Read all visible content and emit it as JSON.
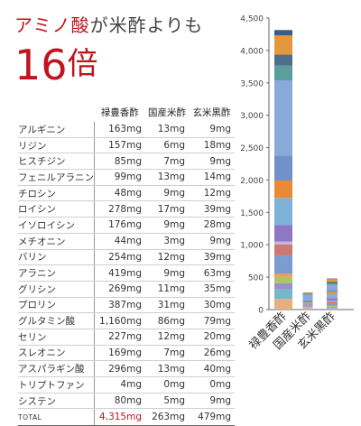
{
  "headline": {
    "red": "アミノ酸",
    "rest": "が米酢よりも"
  },
  "big": {
    "number": "16",
    "unit": "倍"
  },
  "colors": {
    "accent": "#c0141f"
  },
  "chart_data": {
    "type": "bar",
    "stacked": true,
    "categories": [
      "禄豊香酢",
      "国産米酢",
      "玄米黒酢"
    ],
    "ylim": [
      0,
      4500
    ],
    "yticks": [
      "0",
      "500",
      "1,000",
      "1,500",
      "2,000",
      "2,500",
      "3,000",
      "3,500",
      "4,000",
      "4,500"
    ],
    "grid": false,
    "series": [
      {
        "name": "アルギニン",
        "values": [
          163,
          13,
          9
        ],
        "color": "#e7ae7e"
      },
      {
        "name": "リジン",
        "values": [
          157,
          6,
          18
        ],
        "color": "#76b7cc"
      },
      {
        "name": "ヒスチジン",
        "values": [
          85,
          7,
          9
        ],
        "color": "#9b8fc6"
      },
      {
        "name": "フェニルアラニン",
        "values": [
          99,
          13,
          14
        ],
        "color": "#a7c66a"
      },
      {
        "name": "チロシン",
        "values": [
          48,
          9,
          12
        ],
        "color": "#f0a03e"
      },
      {
        "name": "ロイシン",
        "values": [
          278,
          17,
          39
        ],
        "color": "#7a9cd1"
      },
      {
        "name": "イソロイシン",
        "values": [
          176,
          9,
          28
        ],
        "color": "#cc7873"
      },
      {
        "name": "メチオニン",
        "values": [
          44,
          3,
          9
        ],
        "color": "#c0b9db"
      },
      {
        "name": "バリン",
        "values": [
          254,
          12,
          39
        ],
        "color": "#8e78c4"
      },
      {
        "name": "アラニン",
        "values": [
          419,
          9,
          63
        ],
        "color": "#7eb2d9"
      },
      {
        "name": "グリシン",
        "values": [
          269,
          11,
          35
        ],
        "color": "#e98a36"
      },
      {
        "name": "プロリン",
        "values": [
          387,
          31,
          30
        ],
        "color": "#7391c8"
      },
      {
        "name": "グルタミン酸",
        "values": [
          1160,
          86,
          79
        ],
        "color": "#8aa8d8"
      },
      {
        "name": "セリン",
        "values": [
          227,
          12,
          20
        ],
        "color": "#5a9e9d"
      },
      {
        "name": "スレオニン",
        "values": [
          169,
          7,
          26
        ],
        "color": "#4f6e8c"
      },
      {
        "name": "アスパラギン酸",
        "values": [
          296,
          13,
          40
        ],
        "color": "#e4973d"
      },
      {
        "name": "トリプトファン",
        "values": [
          4,
          0,
          0
        ],
        "color": "#9c3b3b"
      },
      {
        "name": "システン",
        "values": [
          80,
          5,
          9
        ],
        "color": "#3a5e86"
      }
    ],
    "total": {
      "label": "TOTAL",
      "values": [
        "4,315mg",
        "263mg",
        "479mg"
      ]
    }
  },
  "table": {
    "headers": [
      "禄豊香酢",
      "国産米酢",
      "玄米黒酢"
    ],
    "rows": [
      [
        "アルギニン",
        "163mg",
        "13mg",
        "9mg"
      ],
      [
        "リジン",
        "157mg",
        "6mg",
        "18mg"
      ],
      [
        "ヒスチジン",
        "85mg",
        "7mg",
        "9mg"
      ],
      [
        "フェニルアラニン",
        "99mg",
        "13mg",
        "14mg"
      ],
      [
        "チロシン",
        "48mg",
        "9mg",
        "12mg"
      ],
      [
        "ロイシン",
        "278mg",
        "17mg",
        "39mg"
      ],
      [
        "イソロイシン",
        "176mg",
        "9mg",
        "28mg"
      ],
      [
        "メチオニン",
        "44mg",
        "3mg",
        "9mg"
      ],
      [
        "バリン",
        "254mg",
        "12mg",
        "39mg"
      ],
      [
        "アラニン",
        "419mg",
        "9mg",
        "63mg"
      ],
      [
        "グリシン",
        "269mg",
        "11mg",
        "35mg"
      ],
      [
        "プロリン",
        "387mg",
        "31mg",
        "30mg"
      ],
      [
        "グルタミン酸",
        "1,160mg",
        "86mg",
        "79mg"
      ],
      [
        "セリン",
        "227mg",
        "12mg",
        "20mg"
      ],
      [
        "スレオニン",
        "169mg",
        "7mg",
        "26mg"
      ],
      [
        "アスパラギン酸",
        "296mg",
        "13mg",
        "40mg"
      ],
      [
        "トリプトファン",
        "4mg",
        "0mg",
        "0mg"
      ],
      [
        "システン",
        "80mg",
        "5mg",
        "9mg"
      ]
    ],
    "total": [
      "TOTAL",
      "4,315mg",
      "263mg",
      "479mg"
    ]
  }
}
